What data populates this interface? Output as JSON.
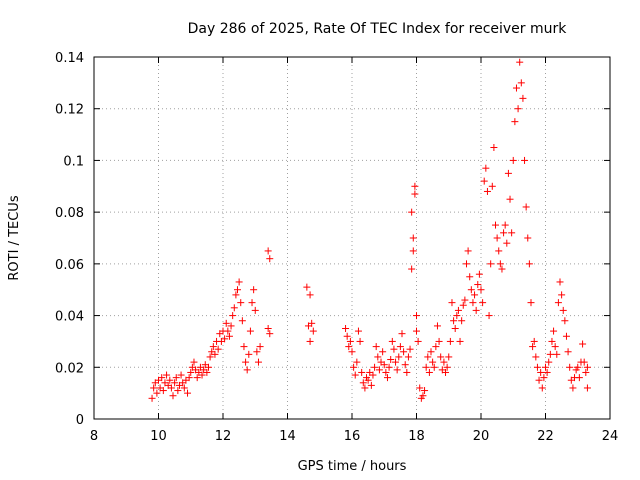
{
  "chart_data": {
    "type": "scatter",
    "title": "Day 286 of 2025, Rate Of TEC Index for receiver murk",
    "xlabel": "GPS time / hours",
    "ylabel": "ROTI / TECUs",
    "xlim": [
      8,
      24
    ],
    "ylim": [
      0,
      0.14
    ],
    "xticks": [
      8,
      10,
      12,
      14,
      16,
      18,
      20,
      22,
      24
    ],
    "yticks": [
      0,
      0.02,
      0.04,
      0.06,
      0.08,
      0.1,
      0.12,
      0.14
    ],
    "xtick_labels": [
      "8",
      "10",
      "12",
      "14",
      "16",
      "18",
      "20",
      "22",
      "24"
    ],
    "ytick_labels": [
      "0",
      "0.02",
      "0.04",
      "0.06",
      "0.08",
      "0.1",
      "0.12",
      "0.14"
    ],
    "grid": true,
    "marker": "plus",
    "color": "#ff0000",
    "series": [
      {
        "name": "ROTI",
        "points": [
          [
            9.8,
            0.008
          ],
          [
            9.85,
            0.012
          ],
          [
            9.9,
            0.014
          ],
          [
            9.95,
            0.01
          ],
          [
            10.0,
            0.015
          ],
          [
            10.05,
            0.012
          ],
          [
            10.1,
            0.016
          ],
          [
            10.15,
            0.011
          ],
          [
            10.2,
            0.014
          ],
          [
            10.25,
            0.017
          ],
          [
            10.3,
            0.013
          ],
          [
            10.35,
            0.015
          ],
          [
            10.4,
            0.012
          ],
          [
            10.45,
            0.009
          ],
          [
            10.5,
            0.014
          ],
          [
            10.55,
            0.016
          ],
          [
            10.6,
            0.011
          ],
          [
            10.65,
            0.013
          ],
          [
            10.7,
            0.017
          ],
          [
            10.75,
            0.014
          ],
          [
            10.8,
            0.012
          ],
          [
            10.85,
            0.015
          ],
          [
            10.9,
            0.01
          ],
          [
            10.95,
            0.016
          ],
          [
            11.0,
            0.018
          ],
          [
            11.05,
            0.02
          ],
          [
            11.1,
            0.022
          ],
          [
            11.15,
            0.019
          ],
          [
            11.2,
            0.016
          ],
          [
            11.25,
            0.018
          ],
          [
            11.3,
            0.02
          ],
          [
            11.35,
            0.017
          ],
          [
            11.4,
            0.019
          ],
          [
            11.45,
            0.021
          ],
          [
            11.5,
            0.018
          ],
          [
            11.55,
            0.02
          ],
          [
            11.6,
            0.024
          ],
          [
            11.65,
            0.026
          ],
          [
            11.7,
            0.028
          ],
          [
            11.75,
            0.025
          ],
          [
            11.8,
            0.03
          ],
          [
            11.85,
            0.027
          ],
          [
            11.9,
            0.033
          ],
          [
            11.95,
            0.03
          ],
          [
            12.0,
            0.034
          ],
          [
            12.05,
            0.031
          ],
          [
            12.1,
            0.037
          ],
          [
            12.15,
            0.034
          ],
          [
            12.2,
            0.032
          ],
          [
            12.25,
            0.036
          ],
          [
            12.3,
            0.04
          ],
          [
            12.35,
            0.043
          ],
          [
            12.4,
            0.048
          ],
          [
            12.45,
            0.05
          ],
          [
            12.5,
            0.053
          ],
          [
            12.55,
            0.045
          ],
          [
            12.6,
            0.038
          ],
          [
            12.65,
            0.028
          ],
          [
            12.7,
            0.022
          ],
          [
            12.75,
            0.019
          ],
          [
            12.8,
            0.025
          ],
          [
            12.85,
            0.034
          ],
          [
            12.9,
            0.045
          ],
          [
            12.95,
            0.05
          ],
          [
            13.0,
            0.042
          ],
          [
            13.05,
            0.026
          ],
          [
            13.1,
            0.022
          ],
          [
            13.15,
            0.028
          ],
          [
            13.4,
            0.035
          ],
          [
            13.45,
            0.033
          ],
          [
            13.4,
            0.065
          ],
          [
            13.45,
            0.062
          ],
          [
            14.6,
            0.051
          ],
          [
            14.7,
            0.048
          ],
          [
            14.65,
            0.036
          ],
          [
            14.7,
            0.03
          ],
          [
            14.75,
            0.037
          ],
          [
            14.8,
            0.034
          ],
          [
            15.8,
            0.035
          ],
          [
            15.85,
            0.032
          ],
          [
            15.9,
            0.028
          ],
          [
            15.95,
            0.03
          ],
          [
            16.0,
            0.026
          ],
          [
            16.05,
            0.02
          ],
          [
            16.1,
            0.017
          ],
          [
            16.15,
            0.022
          ],
          [
            16.2,
            0.034
          ],
          [
            16.25,
            0.03
          ],
          [
            16.3,
            0.018
          ],
          [
            16.35,
            0.014
          ],
          [
            16.4,
            0.012
          ],
          [
            16.45,
            0.016
          ],
          [
            16.5,
            0.015
          ],
          [
            16.55,
            0.018
          ],
          [
            16.6,
            0.013
          ],
          [
            16.65,
            0.017
          ],
          [
            16.7,
            0.02
          ],
          [
            16.75,
            0.028
          ],
          [
            16.8,
            0.024
          ],
          [
            16.85,
            0.019
          ],
          [
            16.9,
            0.022
          ],
          [
            16.95,
            0.026
          ],
          [
            17.0,
            0.021
          ],
          [
            17.05,
            0.018
          ],
          [
            17.1,
            0.016
          ],
          [
            17.15,
            0.02
          ],
          [
            17.2,
            0.023
          ],
          [
            17.25,
            0.03
          ],
          [
            17.3,
            0.027
          ],
          [
            17.35,
            0.022
          ],
          [
            17.4,
            0.019
          ],
          [
            17.45,
            0.024
          ],
          [
            17.5,
            0.028
          ],
          [
            17.55,
            0.033
          ],
          [
            17.6,
            0.026
          ],
          [
            17.65,
            0.021
          ],
          [
            17.7,
            0.018
          ],
          [
            17.75,
            0.024
          ],
          [
            17.8,
            0.027
          ],
          [
            17.85,
            0.058
          ],
          [
            17.9,
            0.065
          ],
          [
            17.95,
            0.087
          ],
          [
            17.85,
            0.08
          ],
          [
            17.9,
            0.07
          ],
          [
            17.95,
            0.09
          ],
          [
            18.0,
            0.04
          ],
          [
            18.0,
            0.034
          ],
          [
            18.05,
            0.03
          ],
          [
            18.1,
            0.012
          ],
          [
            18.15,
            0.008
          ],
          [
            18.2,
            0.009
          ],
          [
            18.25,
            0.011
          ],
          [
            18.3,
            0.02
          ],
          [
            18.35,
            0.024
          ],
          [
            18.4,
            0.018
          ],
          [
            18.45,
            0.026
          ],
          [
            18.5,
            0.022
          ],
          [
            18.55,
            0.02
          ],
          [
            18.6,
            0.028
          ],
          [
            18.65,
            0.036
          ],
          [
            18.7,
            0.03
          ],
          [
            18.75,
            0.024
          ],
          [
            18.8,
            0.019
          ],
          [
            18.85,
            0.022
          ],
          [
            18.9,
            0.018
          ],
          [
            18.95,
            0.02
          ],
          [
            19.0,
            0.024
          ],
          [
            19.05,
            0.03
          ],
          [
            19.1,
            0.045
          ],
          [
            19.15,
            0.038
          ],
          [
            19.2,
            0.035
          ],
          [
            19.25,
            0.04
          ],
          [
            19.3,
            0.042
          ],
          [
            19.35,
            0.03
          ],
          [
            19.4,
            0.038
          ],
          [
            19.45,
            0.044
          ],
          [
            19.5,
            0.046
          ],
          [
            19.55,
            0.06
          ],
          [
            19.6,
            0.065
          ],
          [
            19.65,
            0.055
          ],
          [
            19.7,
            0.05
          ],
          [
            19.75,
            0.045
          ],
          [
            19.8,
            0.048
          ],
          [
            19.85,
            0.042
          ],
          [
            19.9,
            0.052
          ],
          [
            19.95,
            0.056
          ],
          [
            20.0,
            0.05
          ],
          [
            20.05,
            0.045
          ],
          [
            20.1,
            0.092
          ],
          [
            20.15,
            0.097
          ],
          [
            20.2,
            0.088
          ],
          [
            20.25,
            0.04
          ],
          [
            20.3,
            0.06
          ],
          [
            20.35,
            0.09
          ],
          [
            20.4,
            0.105
          ],
          [
            20.45,
            0.075
          ],
          [
            20.5,
            0.07
          ],
          [
            20.55,
            0.065
          ],
          [
            20.6,
            0.06
          ],
          [
            20.65,
            0.058
          ],
          [
            20.7,
            0.072
          ],
          [
            20.75,
            0.075
          ],
          [
            20.8,
            0.068
          ],
          [
            20.85,
            0.095
          ],
          [
            20.9,
            0.085
          ],
          [
            20.95,
            0.072
          ],
          [
            21.0,
            0.1
          ],
          [
            21.05,
            0.115
          ],
          [
            21.1,
            0.128
          ],
          [
            21.15,
            0.12
          ],
          [
            21.2,
            0.138
          ],
          [
            21.25,
            0.13
          ],
          [
            21.3,
            0.124
          ],
          [
            21.35,
            0.1
          ],
          [
            21.4,
            0.082
          ],
          [
            21.45,
            0.07
          ],
          [
            21.5,
            0.06
          ],
          [
            21.55,
            0.045
          ],
          [
            21.6,
            0.028
          ],
          [
            21.65,
            0.03
          ],
          [
            21.7,
            0.024
          ],
          [
            21.75,
            0.02
          ],
          [
            21.8,
            0.015
          ],
          [
            21.85,
            0.018
          ],
          [
            21.9,
            0.012
          ],
          [
            21.95,
            0.016
          ],
          [
            22.0,
            0.02
          ],
          [
            22.05,
            0.018
          ],
          [
            22.1,
            0.022
          ],
          [
            22.15,
            0.025
          ],
          [
            22.2,
            0.03
          ],
          [
            22.25,
            0.034
          ],
          [
            22.3,
            0.028
          ],
          [
            22.35,
            0.025
          ],
          [
            22.4,
            0.045
          ],
          [
            22.45,
            0.053
          ],
          [
            22.5,
            0.048
          ],
          [
            22.55,
            0.042
          ],
          [
            22.6,
            0.038
          ],
          [
            22.65,
            0.032
          ],
          [
            22.7,
            0.026
          ],
          [
            22.75,
            0.02
          ],
          [
            22.8,
            0.015
          ],
          [
            22.85,
            0.012
          ],
          [
            22.9,
            0.016
          ],
          [
            22.95,
            0.019
          ],
          [
            23.0,
            0.02
          ],
          [
            23.05,
            0.016
          ],
          [
            23.1,
            0.022
          ],
          [
            23.15,
            0.029
          ],
          [
            23.2,
            0.022
          ],
          [
            23.25,
            0.018
          ],
          [
            23.3,
            0.012
          ],
          [
            23.3,
            0.02
          ]
        ]
      }
    ]
  }
}
